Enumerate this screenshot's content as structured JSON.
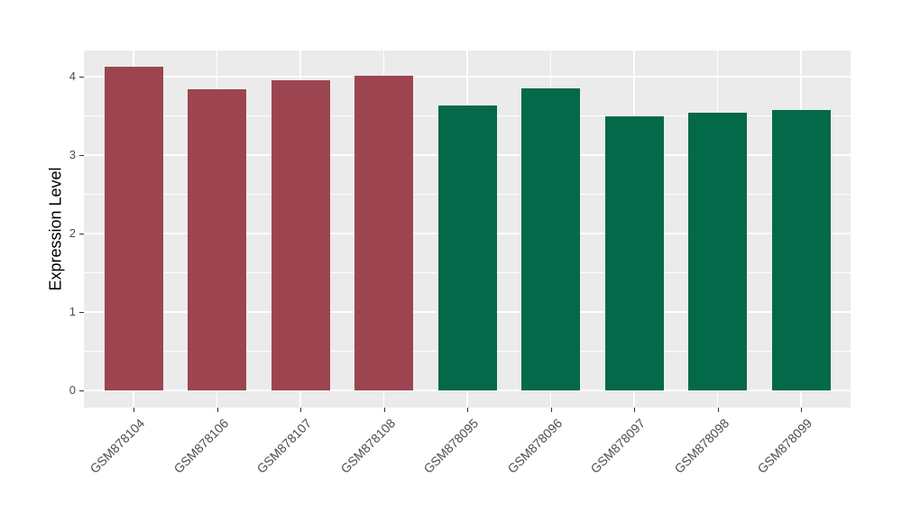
{
  "chart_data": {
    "type": "bar",
    "title": "",
    "xlabel": "",
    "ylabel": "Expression Level",
    "categories": [
      "GSM878104",
      "GSM878106",
      "GSM878107",
      "GSM878108",
      "GSM878095",
      "GSM878096",
      "GSM878097",
      "GSM878098",
      "GSM878099"
    ],
    "values": [
      4.13,
      3.84,
      3.95,
      4.01,
      3.63,
      3.85,
      3.5,
      3.54,
      3.58
    ],
    "bar_colors": [
      "#9C4551",
      "#9C4551",
      "#9C4551",
      "#9C4551",
      "#046948",
      "#046948",
      "#046948",
      "#046948",
      "#046948"
    ],
    "yticks": [
      0,
      1,
      2,
      3,
      4
    ],
    "ylim": [
      -0.22,
      4.33
    ],
    "grid": "major-and-minor",
    "legend_position": "none",
    "panel_background": "#EBEBEB",
    "gridline_color": "#FFFFFF",
    "axis_text_color": "#4D4D4D",
    "tick_mark_color": "#333333"
  }
}
